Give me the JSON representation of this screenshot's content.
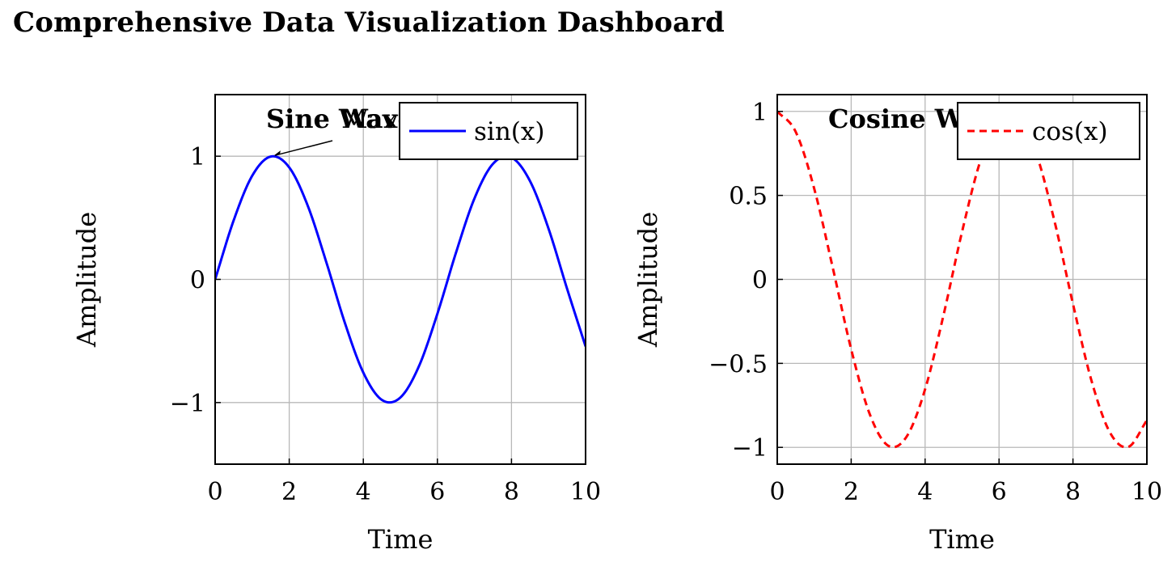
{
  "title": "Comprehensive Data Visualization Dashboard",
  "chart_data": [
    {
      "type": "line",
      "title": "Sine Wave",
      "xlabel": "Time",
      "ylabel": "Amplitude",
      "xlim": [
        0,
        10
      ],
      "ylim": [
        -1.5,
        1.5
      ],
      "xticks": [
        0,
        2,
        4,
        6,
        8,
        10
      ],
      "yticks": [
        -1,
        0,
        1
      ],
      "grid": true,
      "legend_position": "top-right",
      "series": [
        {
          "name": "sin(x)",
          "color": "#0000ff",
          "style": "solid",
          "x": [
            0,
            0.5,
            1,
            1.5,
            2,
            2.5,
            3,
            3.5,
            4,
            4.5,
            5,
            5.5,
            6,
            6.5,
            7,
            7.5,
            8,
            8.5,
            9,
            9.5,
            10
          ],
          "y": [
            0,
            0.479,
            0.841,
            0.997,
            0.909,
            0.598,
            0.141,
            -0.351,
            -0.757,
            -0.978,
            -0.959,
            -0.706,
            -0.279,
            0.215,
            0.657,
            0.938,
            0.989,
            0.798,
            0.412,
            -0.075,
            -0.544
          ]
        }
      ],
      "annotations": [
        {
          "text": "Max",
          "point": [
            1.57,
            1
          ]
        }
      ]
    },
    {
      "type": "line",
      "title": "Cosine Wave",
      "xlabel": "Time",
      "ylabel": "Amplitude",
      "xlim": [
        0,
        10
      ],
      "ylim": [
        -1.1,
        1.1
      ],
      "xticks": [
        0,
        2,
        4,
        6,
        8,
        10
      ],
      "yticks": [
        -1,
        -0.5,
        0,
        0.5,
        1
      ],
      "grid": true,
      "legend_position": "top-right",
      "series": [
        {
          "name": "cos(x)",
          "color": "#ff0000",
          "style": "dashed",
          "x": [
            0,
            0.5,
            1,
            1.5,
            2,
            2.5,
            3,
            3.5,
            4,
            4.5,
            5,
            5.5,
            6,
            6.5,
            7,
            7.5,
            8,
            8.5,
            9,
            9.5,
            10
          ],
          "y": [
            1,
            0.878,
            0.54,
            0.071,
            -0.416,
            -0.801,
            -0.99,
            -0.936,
            -0.654,
            -0.211,
            0.284,
            0.709,
            0.96,
            0.977,
            0.754,
            0.347,
            -0.146,
            -0.602,
            -0.911,
            -0.997,
            -0.839
          ]
        }
      ]
    }
  ]
}
